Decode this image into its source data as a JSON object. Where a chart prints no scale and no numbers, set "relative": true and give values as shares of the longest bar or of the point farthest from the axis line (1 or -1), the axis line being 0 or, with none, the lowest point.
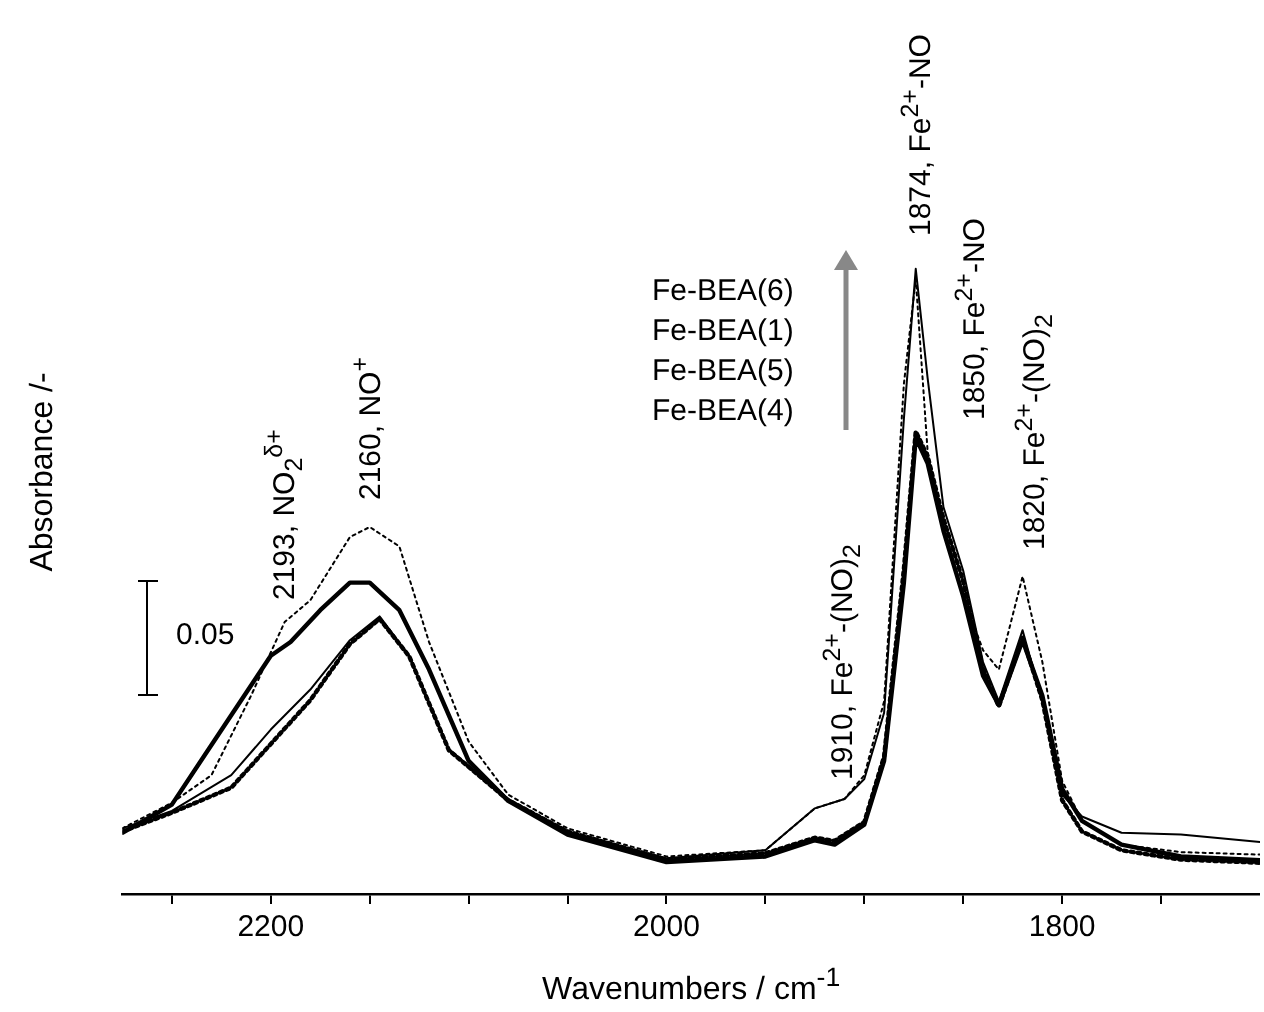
{
  "chart_data": {
    "type": "line",
    "xlabel": "Wavenumbers / cm$^{-1}$",
    "ylabel": "Absorbance /-",
    "relative": true,
    "grid": false,
    "legend": false,
    "xlim": [
      2275,
      1700
    ],
    "xticks": [
      {
        "value": 2250,
        "label": null
      },
      2200,
      {
        "value": 2150,
        "label": null
      },
      {
        "value": 2100,
        "label": null
      },
      {
        "value": 2050,
        "label": null
      },
      2000,
      {
        "value": 1950,
        "label": null
      },
      {
        "value": 1900,
        "label": null
      },
      {
        "value": 1850,
        "label": null
      },
      1800,
      {
        "value": 1750,
        "label": null
      }
    ],
    "series": [
      {
        "color": "#000000",
        "line_style": "dotted",
        "x": [
          2275,
          2250,
          2230,
          2210,
          2193,
          2180,
          2160,
          2150,
          2135,
          2120,
          2100,
          2080,
          2050,
          2000,
          1950,
          1925,
          1910,
          1900,
          1890,
          1880,
          1874,
          1868,
          1860,
          1850,
          1840,
          1832,
          1820,
          1810,
          1800,
          1790,
          1770,
          1740,
          1700
        ],
        "values": [
          0.105,
          0.146,
          0.19,
          0.317,
          0.435,
          0.47,
          0.571,
          0.587,
          0.556,
          0.403,
          0.244,
          0.159,
          0.105,
          0.06,
          0.07,
          0.137,
          0.152,
          0.19,
          0.308,
          0.816,
          0.984,
          0.708,
          0.581,
          0.476,
          0.39,
          0.359,
          0.508,
          0.371,
          0.181,
          0.117,
          0.079,
          0.067,
          0.063
        ]
      },
      {
        "color": "#000000",
        "line_style": "solid",
        "x": [
          2275,
          2250,
          2220,
          2200,
          2180,
          2160,
          2145,
          2130,
          2110,
          2080,
          2050,
          2000,
          1950,
          1925,
          1910,
          1900,
          1890,
          1880,
          1874,
          1868,
          1860,
          1850,
          1840,
          1832,
          1820,
          1810,
          1800,
          1790,
          1770,
          1740,
          1700
        ],
        "values": [
          0.105,
          0.133,
          0.19,
          0.263,
          0.327,
          0.406,
          0.444,
          0.381,
          0.232,
          0.152,
          0.1,
          0.057,
          0.07,
          0.137,
          0.152,
          0.184,
          0.29,
          0.76,
          1,
          0.825,
          0.619,
          0.517,
          0.371,
          0.308,
          0.422,
          0.308,
          0.159,
          0.124,
          0.098,
          0.095,
          0.083
        ]
      },
      {
        "color": "#000000",
        "line_style": "solid",
        "x": [
          2275,
          2250,
          2220,
          2200,
          2190,
          2175,
          2160,
          2150,
          2135,
          2120,
          2100,
          2080,
          2050,
          2000,
          1950,
          1925,
          1915,
          1900,
          1890,
          1880,
          1874,
          1868,
          1860,
          1850,
          1840,
          1832,
          1820,
          1810,
          1800,
          1790,
          1770,
          1740,
          1700
        ],
        "values": [
          0.098,
          0.143,
          0.286,
          0.381,
          0.403,
          0.454,
          0.498,
          0.498,
          0.454,
          0.359,
          0.213,
          0.149,
          0.095,
          0.051,
          0.06,
          0.086,
          0.079,
          0.111,
          0.213,
          0.498,
          0.73,
          0.689,
          0.581,
          0.476,
          0.349,
          0.302,
          0.406,
          0.317,
          0.168,
          0.117,
          0.079,
          0.06,
          0.054
        ]
      },
      {
        "color": "#000000",
        "line_style": "dotted",
        "x": [
          2275,
          2250,
          2220,
          2200,
          2180,
          2160,
          2145,
          2130,
          2110,
          2080,
          2050,
          2000,
          1950,
          1925,
          1915,
          1900,
          1890,
          1880,
          1874,
          1868,
          1860,
          1850,
          1840,
          1832,
          1820,
          1810,
          1800,
          1790,
          1770,
          1740,
          1700
        ],
        "values": [
          0.1,
          0.13,
          0.17,
          0.24,
          0.31,
          0.4,
          0.44,
          0.38,
          0.23,
          0.15,
          0.1,
          0.055,
          0.065,
          0.09,
          0.085,
          0.115,
          0.22,
          0.52,
          0.74,
          0.7,
          0.6,
          0.5,
          0.36,
          0.3,
          0.41,
          0.31,
          0.15,
          0.1,
          0.07,
          0.055,
          0.05
        ]
      }
    ],
    "annotations": [
      "2193, NO$_{2}$$^{δ+}$",
      "2160, NO$^{+}$",
      "1910, Fe$^{2+}$-(NO)$_{2}$",
      "1874, Fe$^{2+}$-NO",
      "1850, Fe$^{2+}$-NO",
      "1820, Fe$^{2+}$-(NO)$_{2}$",
      "Fe-BEA(6)",
      "Fe-BEA(1)",
      "Fe-BEA(5)",
      "Fe-BEA(4)",
      "0.05"
    ]
  }
}
